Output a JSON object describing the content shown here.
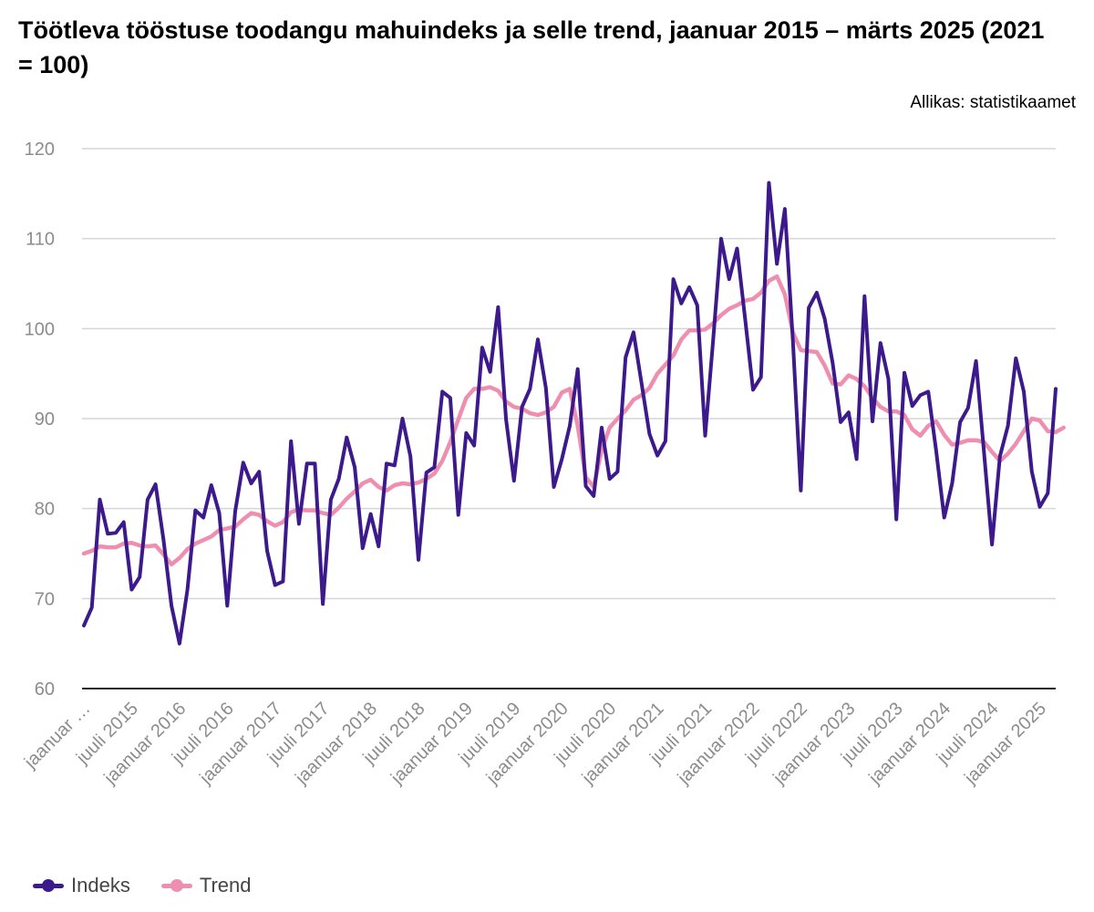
{
  "title": "Töötleva tööstuse toodangu mahuindeks ja selle trend, jaanuar 2015 – märts 2025 (2021 = 100)",
  "source": "Allikas: statistikaamet",
  "legend": [
    {
      "label": "Indeks",
      "color": "#3d1a8c"
    },
    {
      "label": "Trend",
      "color": "#ef8fb0"
    }
  ],
  "chart_data": {
    "type": "line",
    "title": "Töötleva tööstuse toodangu mahuindeks ja selle trend, jaanuar 2015 – märts 2025 (2021 = 100)",
    "x_range": [
      "2015-01",
      "2025-03"
    ],
    "x_tick_labels": [
      "jaanuar …",
      "juuli 2015",
      "jaanuar 2016",
      "juuli 2016",
      "jaanuar 2017",
      "juuli 2017",
      "jaanuar 2018",
      "juuli 2018",
      "jaanuar 2019",
      "juuli 2019",
      "jaanuar 2020",
      "juuli 2020",
      "jaanuar 2021",
      "juuli 2021",
      "jaanuar 2022",
      "juuli 2022",
      "jaanuar 2023",
      "juuli 2023",
      "jaanuar 2024",
      "juuli 2024",
      "jaanuar 2025"
    ],
    "y_ticks": [
      60,
      70,
      80,
      90,
      100,
      110,
      120
    ],
    "ylim": [
      60,
      120
    ],
    "grid": true,
    "legend_position": "bottom-left",
    "series": [
      {
        "name": "Indeks",
        "color": "#3d1a8c",
        "values": [
          67,
          69,
          81,
          77.2,
          77.3,
          78.5,
          71,
          72.4,
          81,
          82.7,
          76.5,
          69.2,
          65,
          71,
          79.8,
          79,
          82.6,
          79.5,
          69.2,
          79.7,
          85.1,
          82.8,
          84.1,
          75.3,
          71.5,
          71.9,
          87.5,
          78.3,
          85,
          85,
          69.4,
          81,
          83.3,
          87.9,
          84.6,
          75.6,
          79.4,
          75.8,
          85,
          84.8,
          90,
          85.8,
          74.3,
          84,
          84.6,
          93,
          92.3,
          79.3,
          88.4,
          87,
          97.9,
          95.2,
          102.4,
          89.9,
          83.1,
          91.3,
          93.3,
          98.8,
          93.4,
          82.4,
          85.5,
          89.2,
          95.5,
          82.5,
          81.4,
          89,
          83.3,
          84.1,
          96.8,
          99.6,
          94,
          88.3,
          85.9,
          87.5,
          105.5,
          102.8,
          104.6,
          102.6,
          88.1,
          98.8,
          110,
          105.5,
          108.9,
          101.2,
          93.2,
          94.6,
          116.2,
          107.2,
          113.3,
          98.7,
          82,
          102.3,
          104,
          101.1,
          96.2,
          89.6,
          90.7,
          85.5,
          103.6,
          89.7,
          98.4,
          94.4,
          78.8,
          95.1,
          91.4,
          92.6,
          93,
          86.4,
          79,
          82.8,
          89.6,
          91.2,
          96.4,
          86.2,
          76,
          85.8,
          89.2,
          96.7,
          93,
          84.1,
          80.2,
          81.7,
          93.3
        ]
      },
      {
        "name": "Trend",
        "color": "#ef8fb0",
        "values": [
          75,
          75.3,
          75.8,
          75.7,
          75.7,
          76.1,
          76.2,
          75.9,
          75.8,
          75.9,
          74.9,
          73.8,
          74.5,
          75.5,
          76.1,
          76.5,
          76.9,
          77.6,
          77.8,
          78,
          78.8,
          79.5,
          79.3,
          78.6,
          78.1,
          78.5,
          79.6,
          79.9,
          79.8,
          79.8,
          79.5,
          79.3,
          80.1,
          81.1,
          81.9,
          82.8,
          83.2,
          82.4,
          82,
          82.6,
          82.8,
          82.7,
          82.9,
          83.3,
          83.9,
          85.3,
          87.4,
          89.9,
          92.3,
          93.3,
          93.3,
          93.5,
          93.1,
          91.9,
          91.3,
          91.1,
          90.6,
          90.4,
          90.7,
          91.3,
          92.9,
          93.3,
          89.2,
          83.5,
          82.4,
          86.5,
          89,
          90,
          90.9,
          92.1,
          92.6,
          93.4,
          95,
          96,
          97,
          98.8,
          99.8,
          99.8,
          99.9,
          100.6,
          101.5,
          102.2,
          102.6,
          103.1,
          103.3,
          104,
          105.3,
          105.8,
          103.8,
          99.6,
          97.6,
          97.5,
          97.4,
          95.9,
          93.9,
          93.8,
          94.8,
          94.4,
          93.6,
          92.3,
          91.3,
          90.8,
          90.8,
          90.4,
          88.8,
          88.1,
          89.2,
          89.7,
          88.2,
          87.1,
          87.3,
          87.6,
          87.6,
          87.4,
          86.3,
          85.3,
          86.1,
          87.2,
          88.6,
          90,
          89.8,
          88.6,
          88.5,
          89
        ]
      }
    ]
  }
}
